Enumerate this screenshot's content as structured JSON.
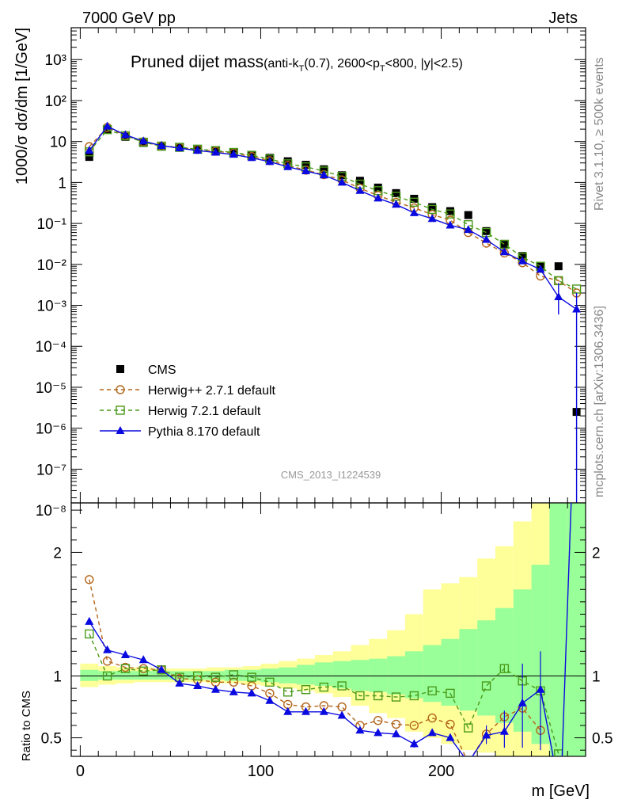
{
  "header": {
    "left": "7000 GeV pp",
    "right": "Jets"
  },
  "side_labels": {
    "rivet": "Rivet 3.1.10, ≥ 500k events",
    "mcplots": "mcplots.cern.ch [arXiv:1306.3436]"
  },
  "chart_data": [
    {
      "type": "scatter",
      "title_main": "Pruned dijet mass",
      "title_sub": "(anti-k_T(0.7), 2600<p_T<800, |y|<2.5)",
      "ylabel": "1000/σ dσ/dm [1/GeV]",
      "watermark": "CMS_2013_I1224539",
      "yscale": "log",
      "ylim": [
        1.5e-08,
        6000
      ],
      "xlim": [
        -5,
        280
      ],
      "ytick_labels": [
        "10⁻⁸",
        "10⁻⁷",
        "10⁻⁶",
        "10⁻⁵",
        "10⁻⁴",
        "10⁻³",
        "10⁻²",
        "10⁻¹",
        "1",
        "10",
        "10²",
        "10³"
      ],
      "legend_position": "lower-left",
      "x": [
        5,
        15,
        25,
        35,
        45,
        55,
        65,
        75,
        85,
        95,
        105,
        115,
        125,
        135,
        145,
        155,
        165,
        175,
        185,
        195,
        205,
        215,
        225,
        235,
        245,
        255,
        265,
        275
      ],
      "series": [
        {
          "name": "CMS",
          "color": "#000000",
          "marker": "square-filled",
          "values": [
            4.2,
            19.5,
            13.0,
            9.2,
            7.5,
            7.3,
            6.6,
            6.1,
            5.5,
            4.7,
            4.0,
            3.3,
            2.7,
            2.1,
            1.5,
            1.1,
            0.75,
            0.55,
            0.4,
            0.25,
            0.2,
            0.16,
            0.065,
            0.03,
            0.016,
            0.009,
            0.009,
            2.5e-06
          ]
        },
        {
          "name": "Herwig++ 2.7.1 default",
          "color": "#b3651a",
          "marker": "circle-open",
          "line": "dashed",
          "values": [
            7.5,
            22.0,
            14.0,
            9.8,
            7.8,
            7.2,
            6.4,
            5.8,
            5.2,
            4.3,
            3.4,
            2.6,
            2.0,
            1.55,
            1.15,
            0.72,
            0.48,
            0.33,
            0.24,
            0.165,
            0.12,
            0.06,
            0.033,
            0.019,
            0.011,
            0.0052,
            0.004,
            0.002
          ]
        },
        {
          "name": "Herwig 7.2.1 default",
          "color": "#4a9a1a",
          "marker": "square-open",
          "line": "dashed",
          "values": [
            5.6,
            19.5,
            13.8,
            9.6,
            7.7,
            7.2,
            6.5,
            6.0,
            5.4,
            4.6,
            3.75,
            2.85,
            2.4,
            1.9,
            1.4,
            0.91,
            0.63,
            0.46,
            0.33,
            0.22,
            0.17,
            0.093,
            0.06,
            0.031,
            0.015,
            0.009,
            0.004,
            0.0025
          ]
        },
        {
          "name": "Pythia 8.170 default",
          "color": "#0a0ae0",
          "marker": "triangle-filled",
          "line": "solid",
          "values": [
            6.0,
            23.5,
            14.5,
            10.2,
            7.9,
            6.9,
            6.0,
            5.4,
            4.8,
            4.0,
            3.2,
            2.4,
            1.9,
            1.5,
            1.0,
            0.63,
            0.41,
            0.29,
            0.18,
            0.13,
            0.09,
            0.07,
            0.04,
            0.02,
            0.012,
            0.0075,
            0.0016,
            0.0008
          ]
        }
      ]
    },
    {
      "type": "scatter",
      "ylabel": "Ratio to CMS",
      "xlabel": "m [GeV]",
      "ylim": [
        0.35,
        2.4
      ],
      "xlim": [
        -5,
        280
      ],
      "ytick_labels": [
        "0.5",
        "1",
        "2"
      ],
      "xtick_labels": [
        "0",
        "100",
        "200"
      ],
      "band_inner_color": "#99ff99",
      "band_outer_color": "#ffff99",
      "x": [
        5,
        15,
        25,
        35,
        45,
        55,
        65,
        75,
        85,
        95,
        105,
        115,
        125,
        135,
        145,
        155,
        165,
        175,
        185,
        195,
        205,
        215,
        225,
        235,
        245,
        255,
        265,
        275
      ],
      "band_inner": [
        [
          0.96,
          1.05
        ],
        [
          0.97,
          1.04
        ],
        [
          0.97,
          1.04
        ],
        [
          0.97,
          1.04
        ],
        [
          0.97,
          1.04
        ],
        [
          0.97,
          1.04
        ],
        [
          0.97,
          1.04
        ],
        [
          0.97,
          1.04
        ],
        [
          0.96,
          1.05
        ],
        [
          0.96,
          1.05
        ],
        [
          0.95,
          1.06
        ],
        [
          0.94,
          1.07
        ],
        [
          0.93,
          1.09
        ],
        [
          0.92,
          1.11
        ],
        [
          0.9,
          1.12
        ],
        [
          0.88,
          1.13
        ],
        [
          0.87,
          1.14
        ],
        [
          0.85,
          1.16
        ],
        [
          0.82,
          1.2
        ],
        [
          0.79,
          1.25
        ],
        [
          0.76,
          1.3
        ],
        [
          0.72,
          1.38
        ],
        [
          0.68,
          1.45
        ],
        [
          0.62,
          1.55
        ],
        [
          0.55,
          1.7
        ],
        [
          0.45,
          1.9
        ],
        [
          0.35,
          2.4
        ],
        [
          0.35,
          2.4
        ]
      ],
      "band_outer": [
        [
          0.91,
          1.1
        ],
        [
          0.93,
          1.08
        ],
        [
          0.94,
          1.07
        ],
        [
          0.95,
          1.07
        ],
        [
          0.95,
          1.06
        ],
        [
          0.95,
          1.06
        ],
        [
          0.95,
          1.06
        ],
        [
          0.94,
          1.07
        ],
        [
          0.94,
          1.07
        ],
        [
          0.93,
          1.08
        ],
        [
          0.92,
          1.1
        ],
        [
          0.9,
          1.12
        ],
        [
          0.88,
          1.14
        ],
        [
          0.86,
          1.17
        ],
        [
          0.83,
          1.2
        ],
        [
          0.76,
          1.25
        ],
        [
          0.7,
          1.3
        ],
        [
          0.66,
          1.37
        ],
        [
          0.55,
          1.5
        ],
        [
          0.5,
          1.7
        ],
        [
          0.45,
          1.75
        ],
        [
          0.4,
          1.8
        ],
        [
          0.38,
          1.95
        ],
        [
          0.35,
          2.05
        ],
        [
          0.35,
          2.25
        ],
        [
          0.35,
          2.4
        ],
        [
          0.35,
          2.4
        ],
        [
          0.35,
          2.4
        ]
      ],
      "series": [
        {
          "name": "Herwig++ 2.7.1 default",
          "color": "#b3651a",
          "marker": "circle-open",
          "line": "dashed",
          "values": [
            1.78,
            1.12,
            1.07,
            1.06,
            1.05,
            0.98,
            0.97,
            0.95,
            0.95,
            0.92,
            0.86,
            0.77,
            0.75,
            0.76,
            0.75,
            0.6,
            0.64,
            0.61,
            0.6,
            0.66,
            0.61,
            0.3,
            0.53,
            0.67,
            0.74,
            0.56,
            null,
            null
          ]
        },
        {
          "name": "Herwig 7.2.1 default",
          "color": "#4a9a1a",
          "marker": "square-open",
          "line": "dashed",
          "values": [
            1.34,
            1.0,
            1.06,
            1.04,
            1.05,
            0.99,
            1.0,
            0.99,
            1.01,
            0.99,
            0.95,
            0.87,
            0.89,
            0.91,
            0.92,
            0.84,
            0.84,
            0.83,
            0.84,
            0.88,
            0.86,
            0.58,
            0.92,
            1.06,
            0.96,
            0.88,
            0.37,
            null
          ]
        },
        {
          "name": "Pythia 8.170 default",
          "color": "#0a0ae0",
          "marker": "triangle-filled",
          "line": "solid",
          "values": [
            1.44,
            1.21,
            1.17,
            1.13,
            1.05,
            0.94,
            0.92,
            0.89,
            0.87,
            0.86,
            0.8,
            0.71,
            0.71,
            0.71,
            0.68,
            0.56,
            0.54,
            0.53,
            0.45,
            0.54,
            0.5,
            0.3,
            0.52,
            0.55,
            0.78,
            0.89,
            null,
            null
          ]
        }
      ]
    }
  ]
}
